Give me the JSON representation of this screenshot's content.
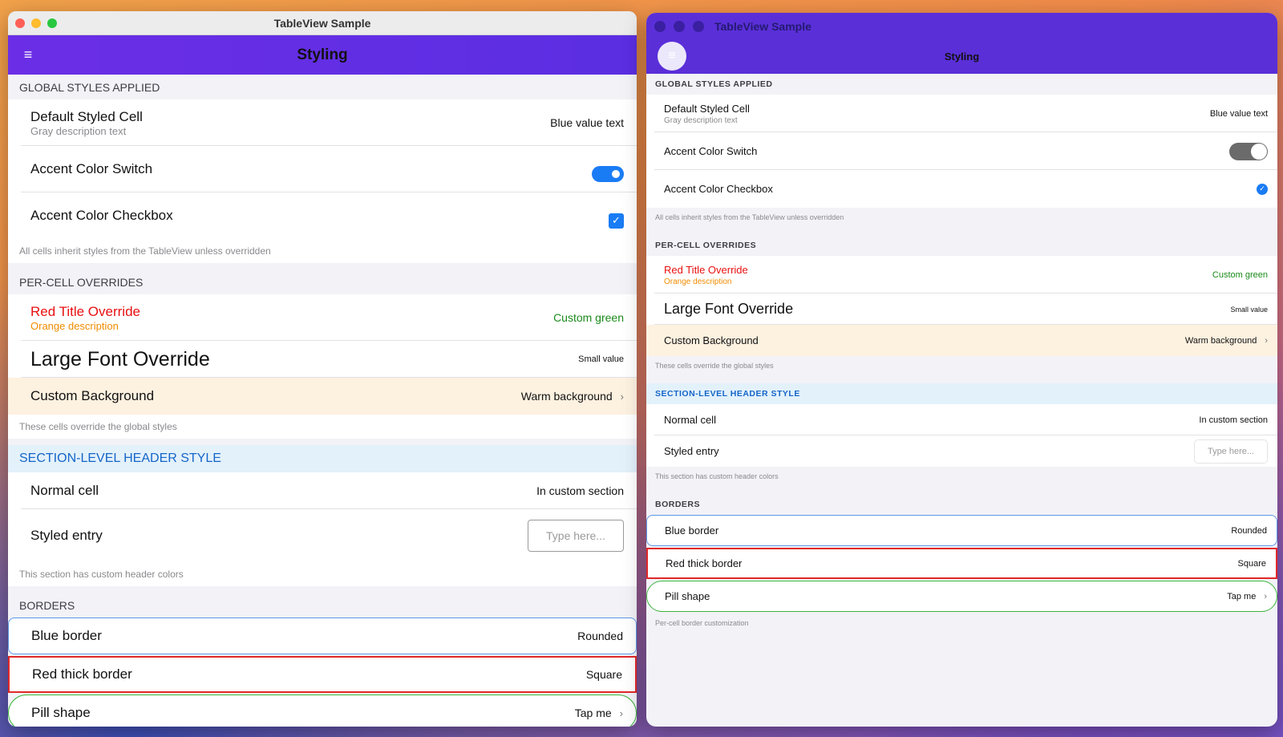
{
  "windows": [
    {
      "title": "TableView Sample",
      "nav_title": "Styling",
      "sections": [
        {
          "header": "GLOBAL STYLES APPLIED",
          "cells": [
            {
              "title": "Default Styled Cell",
              "description": "Gray description text",
              "value": "Blue value text"
            },
            {
              "title": "Accent Color Switch",
              "accessory": "switch",
              "switch_on": true
            },
            {
              "title": "Accent Color Checkbox",
              "accessory": "checkbox",
              "checked": true
            }
          ],
          "footer": "All cells inherit styles from the TableView unless overridden"
        },
        {
          "header": "PER-CELL OVERRIDES",
          "cells": [
            {
              "title": "Red Title Override",
              "description": "Orange description",
              "value": "Custom green",
              "title_color": "#e81010",
              "description_color": "#f08c00",
              "value_color": "#1a8a1a"
            },
            {
              "title": "Large Font Override",
              "value": "Small value",
              "title_font": "large",
              "value_font": "small"
            },
            {
              "title": "Custom Background",
              "value": "Warm background",
              "accessory": "chevron",
              "background": "#fdf1e0"
            }
          ],
          "footer": "These cells override the global styles"
        },
        {
          "header": "SECTION-LEVEL HEADER STYLE",
          "header_color": "#1466c8",
          "header_background": "#e3f1fb",
          "cells": [
            {
              "title": "Normal cell",
              "value": "In custom section"
            },
            {
              "title": "Styled entry",
              "accessory": "entry",
              "placeholder": "Type here..."
            }
          ],
          "footer": "This section has custom header colors"
        },
        {
          "header": "BORDERS",
          "cells": [
            {
              "title": "Blue border",
              "value": "Rounded",
              "border_color": "#5b97e6",
              "border_shape": "rounded"
            },
            {
              "title": "Red thick border",
              "value": "Square",
              "border_color": "#e02828",
              "border_shape": "square"
            },
            {
              "title": "Pill shape",
              "value": "Tap me",
              "accessory": "chevron",
              "border_color": "#3cb43c",
              "border_shape": "pill"
            }
          ]
        }
      ]
    },
    {
      "title": "TableView Sample",
      "nav_title": "Styling",
      "sections": [
        {
          "header": "GLOBAL STYLES APPLIED",
          "cells": [
            {
              "title": "Default Styled Cell",
              "description": "Gray description text",
              "value": "Blue value text"
            },
            {
              "title": "Accent Color Switch",
              "accessory": "switch",
              "switch_on": false
            },
            {
              "title": "Accent Color Checkbox",
              "accessory": "checkbox",
              "checked": true
            }
          ],
          "footer": "All cells inherit styles from the TableView unless overridden"
        },
        {
          "header": "PER-CELL OVERRIDES",
          "cells": [
            {
              "title": "Red Title Override",
              "description": "Orange description",
              "value": "Custom green",
              "title_color": "#e81010",
              "description_color": "#f08c00",
              "value_color": "#1a8a1a"
            },
            {
              "title": "Large Font Override",
              "value": "Small value",
              "title_font": "large",
              "value_font": "small"
            },
            {
              "title": "Custom Background",
              "value": "Warm background",
              "accessory": "chevron",
              "background": "#fdf1e0"
            }
          ],
          "footer": "These cells override the global styles"
        },
        {
          "header": "SECTION-LEVEL HEADER STYLE",
          "header_color": "#1466c8",
          "header_background": "#e3f1fb",
          "cells": [
            {
              "title": "Normal cell",
              "value": "In custom section"
            },
            {
              "title": "Styled entry",
              "accessory": "entry",
              "placeholder": "Type here..."
            }
          ],
          "footer": "This section has custom header colors"
        },
        {
          "header": "BORDERS",
          "cells": [
            {
              "title": "Blue border",
              "value": "Rounded",
              "border_color": "#5b97e6",
              "border_shape": "rounded"
            },
            {
              "title": "Red thick border",
              "value": "Square",
              "border_color": "#e02828",
              "border_shape": "square"
            },
            {
              "title": "Pill shape",
              "value": "Tap me",
              "accessory": "chevron",
              "border_color": "#3cb43c",
              "border_shape": "pill"
            }
          ],
          "footer": "Per-cell border customization"
        }
      ]
    }
  ]
}
